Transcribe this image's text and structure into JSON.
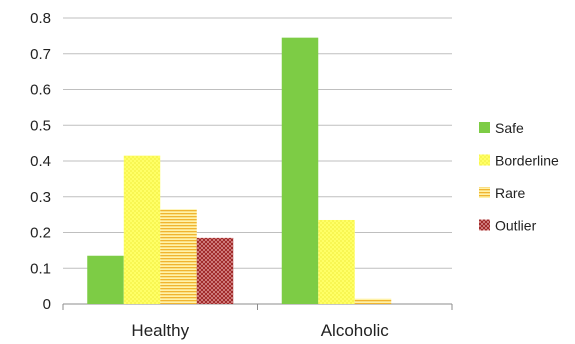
{
  "chart_data": {
    "type": "bar",
    "categories": [
      "Healthy",
      "Alcoholic"
    ],
    "series": [
      {
        "name": "Safe",
        "values": [
          0.135,
          0.745
        ],
        "color": "#7dcc45",
        "pattern": "solid"
      },
      {
        "name": "Borderline",
        "values": [
          0.415,
          0.235
        ],
        "color": "#ffff66",
        "pattern": "dots"
      },
      {
        "name": "Rare",
        "values": [
          0.265,
          0.015
        ],
        "color": "#ffd760",
        "pattern": "horizontal-lines"
      },
      {
        "name": "Outlier",
        "values": [
          0.185,
          0.0
        ],
        "color": "#c0504d",
        "pattern": "crosshatch"
      }
    ],
    "y_ticks": [
      "0",
      "0.1",
      "0.2",
      "0.3",
      "0.4",
      "0.5",
      "0.6",
      "0.7",
      "0.8"
    ],
    "ylim": [
      0,
      0.8
    ],
    "grid": true,
    "legend_position": "right",
    "title": "",
    "xlabel": "",
    "ylabel": ""
  }
}
